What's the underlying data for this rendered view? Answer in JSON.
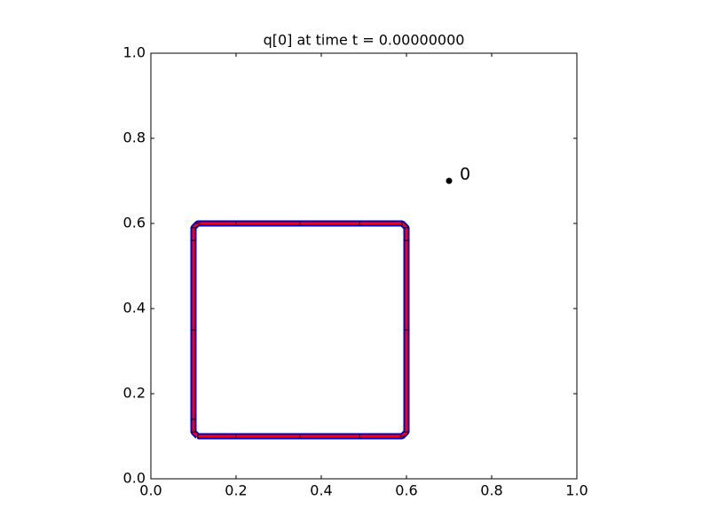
{
  "chart_data": {
    "type": "scatter",
    "title": "q[0] at time t =     0.00000000",
    "xlim": [
      0,
      1
    ],
    "ylim": [
      0,
      1
    ],
    "xticks": [
      {
        "value": 0,
        "label": "0.0"
      },
      0.2,
      0.4,
      0.6,
      0.8,
      {
        "value": 1,
        "label": "1.0"
      }
    ],
    "yticks": [
      {
        "value": 0,
        "label": "0.0"
      },
      0.2,
      0.4,
      0.6,
      0.8,
      {
        "value": 1,
        "label": "1.0"
      }
    ],
    "shape": {
      "edge_color": "#0000cc",
      "fill_color": "#ff0000",
      "x": [
        0.11,
        0.2,
        0.35,
        0.49,
        0.59,
        0.6,
        0.6,
        0.6,
        0.6,
        0.59,
        0.49,
        0.35,
        0.2,
        0.11,
        0.1,
        0.1,
        0.1,
        0.1,
        0.1,
        0.11
      ],
      "y": [
        0.1,
        0.1,
        0.1,
        0.1,
        0.1,
        0.11,
        0.35,
        0.56,
        0.59,
        0.6,
        0.6,
        0.6,
        0.6,
        0.6,
        0.59,
        0.56,
        0.35,
        0.14,
        0.11,
        0.1
      ]
    },
    "points": {
      "color": "#000000",
      "x": [
        0.7
      ],
      "y": [
        0.7
      ],
      "labels": [
        "0"
      ]
    }
  }
}
